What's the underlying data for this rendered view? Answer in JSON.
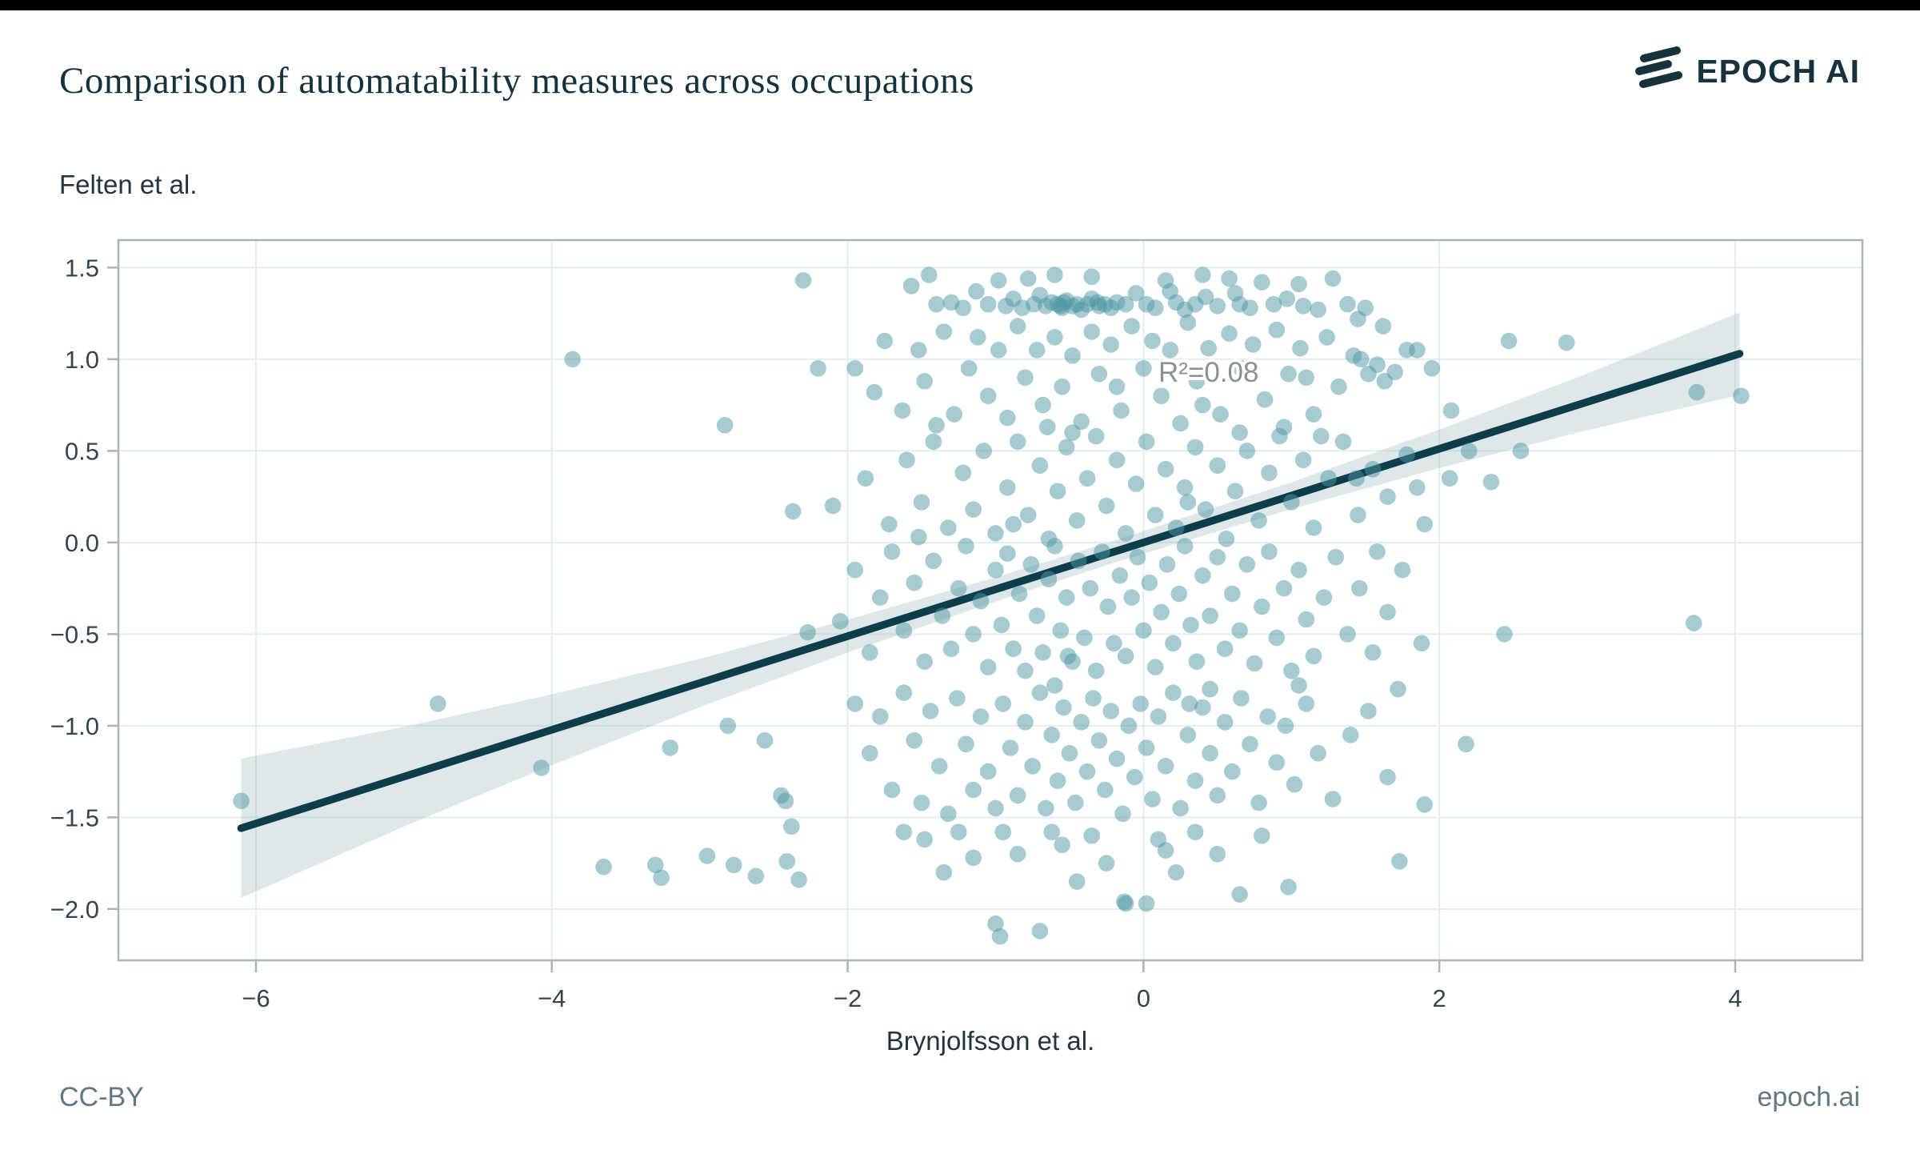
{
  "header": {
    "title": "Comparison of automatability measures across occupations",
    "brand": "EPOCH AI"
  },
  "footer": {
    "license": "CC-BY",
    "site": "epoch.ai"
  },
  "colors": {
    "point": "#4e98a4",
    "point_opacity": 0.5,
    "line": "#0d3c4b",
    "band": "#a2bcbe",
    "band_opacity": 0.35,
    "grid": "#e2edee",
    "border": "#a9b5ba",
    "tick_text": "#33454e",
    "axis_text": "#22353e",
    "annotation_text": "#8a9096",
    "title_text": "#14323e",
    "footer_text": "#5f7882",
    "brand_color": "#16323d"
  },
  "chart_data": {
    "type": "scatter",
    "title": "Comparison of automatability measures across occupations",
    "xlabel": "Brynjolfsson et al.",
    "ylabel": "Felten et al.",
    "x_domain": [
      -6.93,
      4.86
    ],
    "y_domain": [
      -2.28,
      1.65
    ],
    "x_tick_values": [
      -6,
      -4,
      -2,
      0,
      2,
      4
    ],
    "x_tick_labels": [
      "−6",
      "−4",
      "−2",
      "0",
      "2",
      "4"
    ],
    "y_tick_values": [
      1.5,
      1.0,
      0.5,
      0.0,
      -0.5,
      -1.0,
      -1.5,
      -2.0
    ],
    "y_tick_labels": [
      "1.5",
      "1.0",
      "0.5",
      "0.0",
      "−0.5",
      "−1.0",
      "−1.5",
      "−2.0"
    ],
    "grid": true,
    "legend": false,
    "annotation": {
      "label": "R²=0.08",
      "r_squared": 0.08,
      "x": 0.44,
      "y": 0.93
    },
    "regression_line": {
      "x1": -6.1,
      "y1": -1.559,
      "x2": 4.03,
      "y2": 1.03,
      "slope": 0.256,
      "intercept": 0.0
    },
    "confidence_band": [
      [
        -6.1,
        -1.939,
        -1.179
      ],
      [
        -5.0,
        -1.55,
        -1.006
      ],
      [
        -4.0,
        -1.215,
        -0.829
      ],
      [
        -3.0,
        -0.899,
        -0.635
      ],
      [
        -2.0,
        -0.601,
        -0.421
      ],
      [
        -1.0,
        -0.322,
        -0.19
      ],
      [
        -0.2,
        -0.111,
        0.009
      ],
      [
        1.0,
        0.183,
        0.329
      ],
      [
        2.0,
        0.406,
        0.616
      ],
      [
        3.0,
        0.613,
        0.921
      ],
      [
        4.03,
        0.805,
        1.255
      ]
    ],
    "points": [
      [
        -1.57,
        1.4
      ],
      [
        -1.45,
        1.46
      ],
      [
        -1.4,
        1.3
      ],
      [
        -1.3,
        1.31
      ],
      [
        -1.22,
        1.28
      ],
      [
        -1.13,
        1.37
      ],
      [
        -1.05,
        1.3
      ],
      [
        -0.98,
        1.43
      ],
      [
        -0.93,
        1.29
      ],
      [
        -0.88,
        1.33
      ],
      [
        -0.82,
        1.28
      ],
      [
        -0.78,
        1.44
      ],
      [
        -0.74,
        1.3
      ],
      [
        -0.7,
        1.35
      ],
      [
        -0.66,
        1.29
      ],
      [
        -0.62,
        1.31
      ],
      [
        -0.6,
        1.46
      ],
      [
        -0.58,
        1.3
      ],
      [
        -0.56,
        1.29
      ],
      [
        -0.55,
        1.28
      ],
      [
        -0.54,
        1.31
      ],
      [
        -0.52,
        1.32
      ],
      [
        -0.48,
        1.29
      ],
      [
        -0.45,
        1.3
      ],
      [
        -0.42,
        1.27
      ],
      [
        -0.38,
        1.3
      ],
      [
        -0.35,
        1.45
      ],
      [
        -0.35,
        1.33
      ],
      [
        -0.31,
        1.31
      ],
      [
        -0.3,
        1.29
      ],
      [
        -0.26,
        1.3
      ],
      [
        -0.22,
        1.28
      ],
      [
        -0.18,
        1.31
      ],
      [
        -0.12,
        1.3
      ],
      [
        -0.05,
        1.36
      ],
      [
        0.02,
        1.3
      ],
      [
        0.08,
        1.28
      ],
      [
        0.15,
        1.43
      ],
      [
        0.18,
        1.37
      ],
      [
        0.22,
        1.31
      ],
      [
        0.28,
        1.27
      ],
      [
        0.35,
        1.3
      ],
      [
        0.4,
        1.46
      ],
      [
        0.42,
        1.34
      ],
      [
        0.5,
        1.29
      ],
      [
        0.58,
        1.44
      ],
      [
        0.62,
        1.36
      ],
      [
        0.65,
        1.3
      ],
      [
        0.72,
        1.28
      ],
      [
        0.8,
        1.42
      ],
      [
        0.88,
        1.3
      ],
      [
        0.97,
        1.33
      ],
      [
        1.05,
        1.41
      ],
      [
        1.08,
        1.29
      ],
      [
        1.18,
        1.27
      ],
      [
        1.28,
        1.44
      ],
      [
        1.38,
        1.3
      ],
      [
        1.5,
        1.28
      ],
      [
        -2.3,
        1.43
      ],
      [
        -3.86,
        1.0
      ],
      [
        -2.83,
        0.64
      ],
      [
        -2.2,
        0.95
      ],
      [
        -1.95,
        0.95
      ],
      [
        -1.82,
        0.82
      ],
      [
        -1.75,
        1.1
      ],
      [
        -1.63,
        0.72
      ],
      [
        -1.52,
        1.05
      ],
      [
        -1.48,
        0.88
      ],
      [
        -1.4,
        0.64
      ],
      [
        -1.35,
        1.15
      ],
      [
        -1.28,
        0.7
      ],
      [
        -1.18,
        0.95
      ],
      [
        -1.12,
        1.12
      ],
      [
        -1.05,
        0.8
      ],
      [
        -0.98,
        1.05
      ],
      [
        -0.92,
        0.68
      ],
      [
        -0.85,
        1.18
      ],
      [
        -0.8,
        0.9
      ],
      [
        -0.72,
        1.05
      ],
      [
        -0.68,
        0.75
      ],
      [
        -0.65,
        0.63
      ],
      [
        -0.6,
        1.12
      ],
      [
        -0.55,
        0.85
      ],
      [
        -0.48,
        1.02
      ],
      [
        -0.42,
        0.66
      ],
      [
        -0.35,
        1.15
      ],
      [
        -0.3,
        0.92
      ],
      [
        -0.22,
        1.08
      ],
      [
        -0.18,
        0.85
      ],
      [
        -0.15,
        0.72
      ],
      [
        -0.08,
        1.18
      ],
      [
        0.0,
        0.95
      ],
      [
        0.06,
        1.1
      ],
      [
        0.12,
        0.8
      ],
      [
        0.18,
        1.05
      ],
      [
        0.25,
        0.65
      ],
      [
        0.3,
        1.2
      ],
      [
        0.36,
        0.88
      ],
      [
        0.4,
        0.75
      ],
      [
        0.44,
        1.06
      ],
      [
        0.52,
        0.7
      ],
      [
        0.58,
        1.14
      ],
      [
        0.66,
        0.95
      ],
      [
        0.74,
        1.08
      ],
      [
        0.82,
        0.78
      ],
      [
        0.9,
        1.16
      ],
      [
        0.95,
        0.63
      ],
      [
        0.98,
        0.92
      ],
      [
        1.06,
        1.06
      ],
      [
        1.1,
        0.9
      ],
      [
        1.15,
        0.7
      ],
      [
        1.24,
        1.12
      ],
      [
        1.32,
        0.85
      ],
      [
        1.42,
        1.02
      ],
      [
        1.45,
        1.22
      ],
      [
        1.47,
        1.0
      ],
      [
        1.52,
        0.92
      ],
      [
        1.58,
        0.97
      ],
      [
        1.62,
        1.18
      ],
      [
        1.63,
        0.88
      ],
      [
        1.7,
        0.93
      ],
      [
        1.78,
        1.05
      ],
      [
        1.85,
        1.05
      ],
      [
        1.95,
        0.95
      ],
      [
        2.08,
        0.72
      ],
      [
        2.47,
        1.1
      ],
      [
        2.86,
        1.09
      ],
      [
        3.74,
        0.82
      ],
      [
        4.04,
        0.8
      ],
      [
        -2.37,
        0.17
      ],
      [
        -2.1,
        0.2
      ],
      [
        -1.88,
        0.35
      ],
      [
        -1.72,
        0.1
      ],
      [
        -1.6,
        0.45
      ],
      [
        -1.52,
        0.03
      ],
      [
        -1.5,
        0.22
      ],
      [
        -1.42,
        0.55
      ],
      [
        -1.32,
        0.08
      ],
      [
        -1.22,
        0.38
      ],
      [
        -1.15,
        0.18
      ],
      [
        -1.08,
        0.5
      ],
      [
        -1.0,
        0.05
      ],
      [
        -0.92,
        0.3
      ],
      [
        -0.88,
        0.1
      ],
      [
        -0.85,
        0.55
      ],
      [
        -0.78,
        0.15
      ],
      [
        -0.7,
        0.42
      ],
      [
        -0.64,
        0.02
      ],
      [
        -0.58,
        0.28
      ],
      [
        -0.52,
        0.52
      ],
      [
        -0.48,
        0.6
      ],
      [
        -0.45,
        0.12
      ],
      [
        -0.38,
        0.35
      ],
      [
        -0.32,
        0.58
      ],
      [
        -0.25,
        0.2
      ],
      [
        -0.18,
        0.45
      ],
      [
        -0.12,
        0.05
      ],
      [
        -0.05,
        0.32
      ],
      [
        0.02,
        0.55
      ],
      [
        0.08,
        0.15
      ],
      [
        0.15,
        0.4
      ],
      [
        0.22,
        0.08
      ],
      [
        0.28,
        0.3
      ],
      [
        0.3,
        0.22
      ],
      [
        0.35,
        0.52
      ],
      [
        0.42,
        0.18
      ],
      [
        0.5,
        0.42
      ],
      [
        0.56,
        0.02
      ],
      [
        0.62,
        0.28
      ],
      [
        0.65,
        0.6
      ],
      [
        0.7,
        0.5
      ],
      [
        0.78,
        0.12
      ],
      [
        0.85,
        0.38
      ],
      [
        0.92,
        0.58
      ],
      [
        1.0,
        0.22
      ],
      [
        1.08,
        0.45
      ],
      [
        1.15,
        0.08
      ],
      [
        1.2,
        0.58
      ],
      [
        1.25,
        0.35
      ],
      [
        1.35,
        0.55
      ],
      [
        1.44,
        0.35
      ],
      [
        1.45,
        0.15
      ],
      [
        1.55,
        0.4
      ],
      [
        1.65,
        0.25
      ],
      [
        1.78,
        0.48
      ],
      [
        1.85,
        0.3
      ],
      [
        1.9,
        0.1
      ],
      [
        2.07,
        0.35
      ],
      [
        2.2,
        0.5
      ],
      [
        2.35,
        0.33
      ],
      [
        2.55,
        0.5
      ],
      [
        -2.27,
        -0.49
      ],
      [
        -2.05,
        -0.43
      ],
      [
        -1.95,
        -0.15
      ],
      [
        -1.85,
        -0.6
      ],
      [
        -1.78,
        -0.3
      ],
      [
        -1.7,
        -0.05
      ],
      [
        -1.62,
        -0.48
      ],
      [
        -1.55,
        -0.22
      ],
      [
        -1.48,
        -0.65
      ],
      [
        -1.42,
        -0.1
      ],
      [
        -1.36,
        -0.4
      ],
      [
        -1.3,
        -0.58
      ],
      [
        -1.25,
        -0.25
      ],
      [
        -1.2,
        -0.02
      ],
      [
        -1.15,
        -0.5
      ],
      [
        -1.1,
        -0.32
      ],
      [
        -1.05,
        -0.68
      ],
      [
        -1.0,
        -0.15
      ],
      [
        -0.96,
        -0.45
      ],
      [
        -0.92,
        -0.06
      ],
      [
        -0.88,
        -0.58
      ],
      [
        -0.84,
        -0.28
      ],
      [
        -0.8,
        -0.7
      ],
      [
        -0.76,
        -0.12
      ],
      [
        -0.72,
        -0.4
      ],
      [
        -0.68,
        -0.6
      ],
      [
        -0.64,
        -0.2
      ],
      [
        -0.6,
        -0.02
      ],
      [
        -0.56,
        -0.48
      ],
      [
        -0.52,
        -0.3
      ],
      [
        -0.51,
        -0.62
      ],
      [
        -0.48,
        -0.65
      ],
      [
        -0.44,
        -0.1
      ],
      [
        -0.4,
        -0.52
      ],
      [
        -0.36,
        -0.25
      ],
      [
        -0.32,
        -0.7
      ],
      [
        -0.28,
        -0.05
      ],
      [
        -0.24,
        -0.35
      ],
      [
        -0.2,
        -0.55
      ],
      [
        -0.16,
        -0.18
      ],
      [
        -0.12,
        -0.62
      ],
      [
        -0.08,
        -0.3
      ],
      [
        -0.04,
        -0.08
      ],
      [
        0.0,
        -0.48
      ],
      [
        0.04,
        -0.22
      ],
      [
        0.08,
        -0.68
      ],
      [
        0.12,
        -0.38
      ],
      [
        0.16,
        -0.12
      ],
      [
        0.2,
        -0.55
      ],
      [
        0.24,
        -0.28
      ],
      [
        0.28,
        -0.02
      ],
      [
        0.32,
        -0.45
      ],
      [
        0.36,
        -0.65
      ],
      [
        0.4,
        -0.18
      ],
      [
        0.45,
        -0.4
      ],
      [
        0.5,
        -0.08
      ],
      [
        0.55,
        -0.58
      ],
      [
        0.6,
        -0.28
      ],
      [
        0.65,
        -0.48
      ],
      [
        0.7,
        -0.12
      ],
      [
        0.75,
        -0.66
      ],
      [
        0.8,
        -0.35
      ],
      [
        0.85,
        -0.05
      ],
      [
        0.9,
        -0.52
      ],
      [
        0.95,
        -0.25
      ],
      [
        1.0,
        -0.7
      ],
      [
        1.05,
        -0.15
      ],
      [
        1.1,
        -0.42
      ],
      [
        1.15,
        -0.62
      ],
      [
        1.22,
        -0.3
      ],
      [
        1.3,
        -0.08
      ],
      [
        1.38,
        -0.5
      ],
      [
        1.46,
        -0.25
      ],
      [
        1.55,
        -0.6
      ],
      [
        1.58,
        -0.05
      ],
      [
        1.65,
        -0.38
      ],
      [
        1.75,
        -0.15
      ],
      [
        1.88,
        -0.55
      ],
      [
        2.44,
        -0.5
      ],
      [
        3.72,
        -0.44
      ],
      [
        -3.2,
        -1.12
      ],
      [
        -2.81,
        -1.0
      ],
      [
        -2.56,
        -1.08
      ],
      [
        -2.45,
        -1.38
      ],
      [
        -2.42,
        -1.41
      ],
      [
        -1.95,
        -0.88
      ],
      [
        -1.85,
        -1.15
      ],
      [
        -1.78,
        -0.95
      ],
      [
        -1.7,
        -1.35
      ],
      [
        -1.62,
        -0.82
      ],
      [
        -1.55,
        -1.08
      ],
      [
        -1.5,
        -1.42
      ],
      [
        -1.44,
        -0.92
      ],
      [
        -1.38,
        -1.22
      ],
      [
        -1.32,
        -1.48
      ],
      [
        -1.26,
        -0.85
      ],
      [
        -1.2,
        -1.1
      ],
      [
        -1.15,
        -1.35
      ],
      [
        -1.1,
        -0.95
      ],
      [
        -1.05,
        -1.25
      ],
      [
        -1.0,
        -1.45
      ],
      [
        -0.95,
        -0.88
      ],
      [
        -0.9,
        -1.12
      ],
      [
        -0.85,
        -1.38
      ],
      [
        -0.8,
        -0.98
      ],
      [
        -0.75,
        -1.22
      ],
      [
        -0.7,
        -0.82
      ],
      [
        -0.66,
        -1.45
      ],
      [
        -0.62,
        -1.05
      ],
      [
        -0.6,
        -0.78
      ],
      [
        -0.58,
        -1.3
      ],
      [
        -0.54,
        -0.9
      ],
      [
        -0.5,
        -1.15
      ],
      [
        -0.46,
        -1.42
      ],
      [
        -0.42,
        -0.98
      ],
      [
        -0.38,
        -1.25
      ],
      [
        -0.34,
        -0.85
      ],
      [
        -0.3,
        -1.08
      ],
      [
        -0.26,
        -1.35
      ],
      [
        -0.22,
        -0.92
      ],
      [
        -0.18,
        -1.18
      ],
      [
        -0.14,
        -1.48
      ],
      [
        -0.1,
        -1.0
      ],
      [
        -0.06,
        -1.28
      ],
      [
        -0.02,
        -0.88
      ],
      [
        0.02,
        -1.12
      ],
      [
        0.06,
        -1.4
      ],
      [
        0.1,
        -0.95
      ],
      [
        0.15,
        -1.22
      ],
      [
        0.2,
        -0.82
      ],
      [
        0.25,
        -1.45
      ],
      [
        0.3,
        -1.05
      ],
      [
        0.31,
        -0.88
      ],
      [
        0.35,
        -1.3
      ],
      [
        0.4,
        -0.9
      ],
      [
        0.45,
        -1.15
      ],
      [
        0.45,
        -0.8
      ],
      [
        0.5,
        -1.38
      ],
      [
        0.55,
        -0.98
      ],
      [
        0.6,
        -1.25
      ],
      [
        0.66,
        -0.85
      ],
      [
        0.72,
        -1.1
      ],
      [
        0.78,
        -1.42
      ],
      [
        0.84,
        -0.95
      ],
      [
        0.9,
        -1.2
      ],
      [
        0.96,
        -1.0
      ],
      [
        1.02,
        -1.32
      ],
      [
        1.05,
        -0.78
      ],
      [
        1.1,
        -0.88
      ],
      [
        1.18,
        -1.15
      ],
      [
        1.28,
        -1.4
      ],
      [
        1.4,
        -1.05
      ],
      [
        1.52,
        -0.92
      ],
      [
        1.65,
        -1.28
      ],
      [
        1.72,
        -0.8
      ],
      [
        1.9,
        -1.43
      ],
      [
        2.18,
        -1.1
      ],
      [
        -2.38,
        -1.55
      ],
      [
        -2.41,
        -1.74
      ],
      [
        -2.33,
        -1.84
      ],
      [
        -1.62,
        -1.58
      ],
      [
        -1.48,
        -1.62
      ],
      [
        -1.35,
        -1.8
      ],
      [
        -1.25,
        -1.58
      ],
      [
        -1.15,
        -1.72
      ],
      [
        -1.0,
        -2.08
      ],
      [
        -0.97,
        -2.15
      ],
      [
        -0.95,
        -1.58
      ],
      [
        -0.85,
        -1.7
      ],
      [
        -0.7,
        -2.12
      ],
      [
        -0.62,
        -1.58
      ],
      [
        -0.55,
        -1.65
      ],
      [
        -0.45,
        -1.85
      ],
      [
        -0.35,
        -1.6
      ],
      [
        -0.25,
        -1.75
      ],
      [
        -0.13,
        -1.96
      ],
      [
        -0.12,
        -1.97
      ],
      [
        0.02,
        -1.97
      ],
      [
        0.1,
        -1.62
      ],
      [
        0.15,
        -1.68
      ],
      [
        0.22,
        -1.8
      ],
      [
        0.35,
        -1.58
      ],
      [
        0.5,
        -1.7
      ],
      [
        0.65,
        -1.92
      ],
      [
        0.8,
        -1.6
      ],
      [
        0.98,
        -1.88
      ],
      [
        1.73,
        -1.74
      ],
      [
        -6.1,
        -1.41
      ],
      [
        -4.77,
        -0.88
      ],
      [
        -4.07,
        -1.23
      ],
      [
        -3.65,
        -1.77
      ],
      [
        -3.3,
        -1.76
      ],
      [
        -3.26,
        -1.83
      ],
      [
        -2.95,
        -1.71
      ],
      [
        -2.77,
        -1.76
      ],
      [
        -2.62,
        -1.82
      ]
    ]
  }
}
